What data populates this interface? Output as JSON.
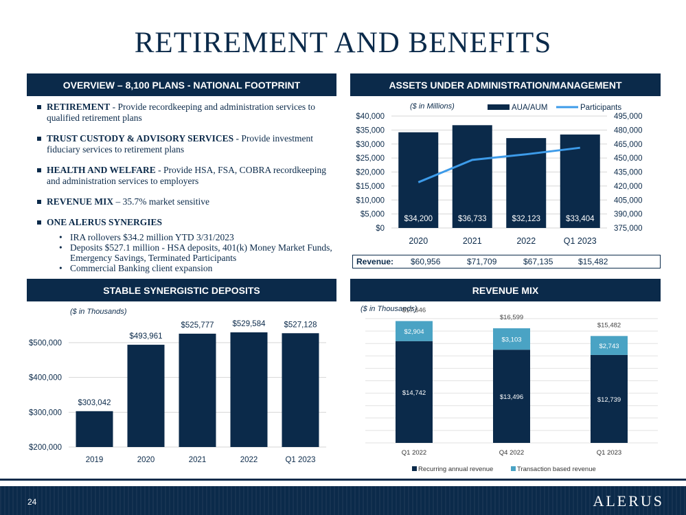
{
  "title": "RETIREMENT AND BENEFITS",
  "panels": {
    "overview": "OVERVIEW – 8,100 PLANS - NATIONAL FOOTPRINT",
    "assets": "ASSETS UNDER ADMINISTRATION/MANAGEMENT",
    "deposits": "STABLE SYNERGISTIC DEPOSITS",
    "revenue_mix": "REVENUE MIX"
  },
  "overview": {
    "items": [
      {
        "bold": "RETIREMENT",
        "text": " - Provide recordkeeping and administration services to qualified retirement plans"
      },
      {
        "bold": "TRUST CUSTODY & ADVISORY SERVICES",
        "text": " - Provide investment fiduciary services to retirement plans"
      },
      {
        "bold": "HEALTH AND WELFARE",
        "text": " - Provide HSA, FSA, COBRA recordkeeping and administration services to employers"
      },
      {
        "bold": "REVENUE MIX",
        "text": " – 35.7% market sensitive"
      },
      {
        "bold": "ONE ALERUS SYNERGIES",
        "text": ""
      }
    ],
    "subitems": [
      "IRA rollovers $34.2 million YTD 3/31/2023",
      "Deposits $527.1 million - HSA deposits, 401(k) Money Market Funds, Emergency Savings, Terminated Participants",
      "Commercial Banking client expansion"
    ]
  },
  "revenue_row": {
    "label": "Revenue:",
    "values": [
      "$60,956",
      "$71,709",
      "$67,135",
      "$15,482"
    ]
  },
  "footer": {
    "page_number": "24",
    "logo": "ALERUS"
  },
  "colors": {
    "navy": "#0b2a4a",
    "participants_line": "#3d9be9",
    "transaction_teal": "#4aa3c4"
  },
  "chart_data": [
    {
      "type": "bar",
      "unit_note": "($ in Millions)",
      "categories": [
        "2020",
        "2021",
        "2022",
        "Q1 2023"
      ],
      "series": [
        {
          "name": "AUA/AUM",
          "values": [
            34200,
            36733,
            32123,
            33404
          ],
          "labels": [
            "$34,200",
            "$36,733",
            "$32,123",
            "$33,404"
          ],
          "axis": "left"
        },
        {
          "name": "Participants",
          "type": "line",
          "values": [
            424000,
            448000,
            454000,
            461000
          ],
          "axis": "right"
        }
      ],
      "ylim": [
        0,
        40000
      ],
      "yticks": [
        "$0",
        "$5,000",
        "$10,000",
        "$15,000",
        "$20,000",
        "$25,000",
        "$30,000",
        "$35,000",
        "$40,000"
      ],
      "y2lim": [
        375000,
        495000
      ],
      "y2ticks": [
        "375,000",
        "390,000",
        "405,000",
        "420,000",
        "435,000",
        "450,000",
        "465,000",
        "480,000",
        "495,000"
      ],
      "legend": "top-right",
      "grid": true
    },
    {
      "type": "bar",
      "unit_note": "($ in Thousands)",
      "categories": [
        "2019",
        "2020",
        "2021",
        "2022",
        "Q1 2023"
      ],
      "values": [
        303042,
        493961,
        525777,
        529584,
        527128
      ],
      "labels": [
        "$303,042",
        "$493,961",
        "$525,777",
        "$529,584",
        "$527,128"
      ],
      "ylim": [
        200000,
        500000
      ],
      "yticks": [
        "$200,000",
        "$300,000",
        "$400,000",
        "$500,000"
      ],
      "grid": true
    },
    {
      "type": "bar",
      "stacked": true,
      "unit_note": "($ in Thousands)",
      "categories": [
        "Q1 2022",
        "Q4 2022",
        "Q1 2023"
      ],
      "series": [
        {
          "name": "Recurring annual revenue",
          "values": [
            14742,
            13496,
            12739
          ],
          "labels": [
            "$14,742",
            "$13,496",
            "$12,739"
          ]
        },
        {
          "name": "Transaction based revenue",
          "values": [
            2904,
            3103,
            2743
          ],
          "labels": [
            "$2,904",
            "$3,103",
            "$2,743"
          ]
        }
      ],
      "totals": [
        "$17,646",
        "$16,599",
        "$15,482"
      ],
      "ylim": [
        0,
        18000
      ],
      "legend": "bottom",
      "grid": true
    }
  ]
}
